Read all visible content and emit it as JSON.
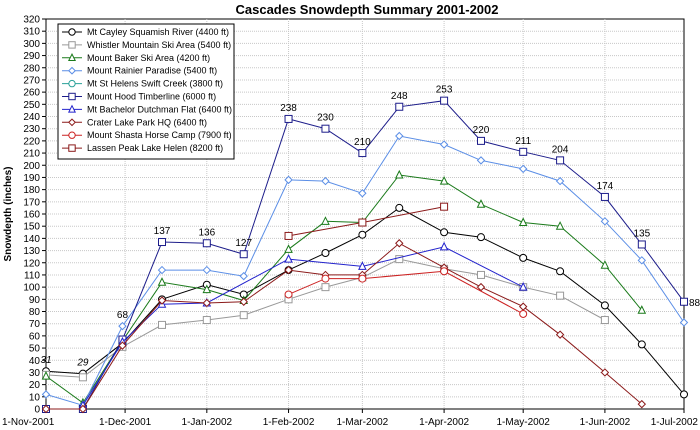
{
  "chart_data": {
    "type": "line",
    "title": "Cascades Snowdepth Summary 2001-2002",
    "xlabel": "",
    "ylabel": "Snowdepth (inches)",
    "ylim": [
      0,
      320
    ],
    "ytick_step": 10,
    "grid": true,
    "legend_position": "top-left",
    "xlim": [
      "2001-11-01",
      "2002-07-01"
    ],
    "x_ticks": [
      {
        "date": "2001-11-01",
        "label": "1-Nov-2001"
      },
      {
        "date": "2001-12-01",
        "label": "1-Dec-2001"
      },
      {
        "date": "2002-01-01",
        "label": "1-Jan-2002"
      },
      {
        "date": "2002-02-01",
        "label": "1-Feb-2002"
      },
      {
        "date": "2002-03-01",
        "label": "1-Mar-2002"
      },
      {
        "date": "2002-04-01",
        "label": "1-Apr-2002"
      },
      {
        "date": "2002-05-01",
        "label": "1-May-2002"
      },
      {
        "date": "2002-06-01",
        "label": "1-Jun-2002"
      },
      {
        "date": "2002-07-01",
        "label": "1-Jul-2002"
      }
    ],
    "series": [
      {
        "name": "Mt Cayley Squamish River (4400 ft)",
        "color": "#000000",
        "marker": "circle",
        "points": [
          [
            "2001-11-01",
            31
          ],
          [
            "2001-11-15",
            29
          ],
          [
            "2001-11-30",
            54
          ],
          [
            "2001-12-15",
            90
          ],
          [
            "2002-01-01",
            102
          ],
          [
            "2002-01-15",
            94
          ],
          [
            "2002-02-01",
            114
          ],
          [
            "2002-02-15",
            128
          ],
          [
            "2002-03-01",
            143
          ],
          [
            "2002-03-15",
            165
          ],
          [
            "2002-04-01",
            145
          ],
          [
            "2002-04-15",
            141
          ],
          [
            "2002-05-01",
            124
          ],
          [
            "2002-05-15",
            113
          ],
          [
            "2002-06-01",
            85
          ],
          [
            "2002-06-15",
            53
          ],
          [
            "2002-07-01",
            12
          ]
        ]
      },
      {
        "name": "Whistler Mountain Ski Area (5400 ft)",
        "color": "#999999",
        "marker": "square",
        "points": [
          [
            "2001-11-01",
            28
          ],
          [
            "2001-11-15",
            26
          ],
          [
            "2001-11-30",
            51
          ],
          [
            "2001-12-15",
            69
          ],
          [
            "2002-01-01",
            73
          ],
          [
            "2002-01-15",
            77
          ],
          [
            "2002-02-01",
            90
          ],
          [
            "2002-02-15",
            100
          ],
          [
            "2002-03-01",
            108
          ],
          [
            "2002-03-15",
            123
          ],
          [
            "2002-04-01",
            115
          ],
          [
            "2002-04-15",
            110
          ],
          [
            "2002-05-01",
            100
          ],
          [
            "2002-05-15",
            93
          ],
          [
            "2002-06-01",
            73
          ]
        ]
      },
      {
        "name": "Mount Baker Ski Area (4200 ft)",
        "color": "#1a7a1a",
        "marker": "triangle",
        "points": [
          [
            "2001-11-01",
            27
          ],
          [
            "2001-11-15",
            5
          ],
          [
            "2001-11-30",
            56
          ],
          [
            "2001-12-15",
            104
          ],
          [
            "2002-01-01",
            98
          ],
          [
            "2002-01-15",
            89
          ],
          [
            "2002-02-01",
            131
          ],
          [
            "2002-02-15",
            154
          ],
          [
            "2002-03-01",
            153
          ],
          [
            "2002-03-15",
            192
          ],
          [
            "2002-04-01",
            187
          ],
          [
            "2002-04-15",
            168
          ],
          [
            "2002-05-01",
            153
          ],
          [
            "2002-05-15",
            150
          ],
          [
            "2002-06-01",
            118
          ],
          [
            "2002-06-15",
            81
          ]
        ]
      },
      {
        "name": "Mount Rainier Paradise (5400 ft)",
        "color": "#5b8ee6",
        "marker": "diamond",
        "points": [
          [
            "2001-11-01",
            12
          ],
          [
            "2001-11-15",
            3
          ],
          [
            "2001-11-30",
            68
          ],
          [
            "2001-12-15",
            114
          ],
          [
            "2002-01-01",
            114
          ],
          [
            "2002-01-15",
            109
          ],
          [
            "2002-02-01",
            188
          ],
          [
            "2002-02-15",
            187
          ],
          [
            "2002-03-01",
            177
          ],
          [
            "2002-03-15",
            224
          ],
          [
            "2002-04-01",
            217
          ],
          [
            "2002-04-15",
            204
          ],
          [
            "2002-05-01",
            197
          ],
          [
            "2002-05-15",
            187
          ],
          [
            "2002-06-01",
            154
          ],
          [
            "2002-06-15",
            122
          ],
          [
            "2002-07-01",
            71
          ]
        ]
      },
      {
        "name": "Mt St Helens Swift Creek (3800 ft)",
        "color": "#2aa198",
        "marker": "circle",
        "points": []
      },
      {
        "name": "Mount Hood Timberline (6000 ft)",
        "color": "#1c1c8a",
        "marker": "square",
        "points": [
          [
            "2001-11-01",
            0
          ],
          [
            "2001-11-15",
            0
          ],
          [
            "2001-11-30",
            57
          ],
          [
            "2001-12-15",
            137
          ],
          [
            "2002-01-01",
            136
          ],
          [
            "2002-01-15",
            127
          ],
          [
            "2002-02-01",
            238
          ],
          [
            "2002-02-15",
            230
          ],
          [
            "2002-03-01",
            210
          ],
          [
            "2002-03-15",
            248
          ],
          [
            "2002-04-01",
            253
          ],
          [
            "2002-04-15",
            220
          ],
          [
            "2002-05-01",
            211
          ],
          [
            "2002-05-15",
            204
          ],
          [
            "2002-06-01",
            174
          ],
          [
            "2002-06-15",
            135
          ],
          [
            "2002-07-01",
            88
          ]
        ]
      },
      {
        "name": "Mt Bachelor Dutchman Flat (6400 ft)",
        "color": "#2222cc",
        "marker": "triangle",
        "points": [
          [
            "2001-11-15",
            3
          ],
          [
            "2001-11-30",
            55
          ],
          [
            "2001-12-15",
            86
          ],
          [
            "2002-01-01",
            87
          ],
          [
            "2002-02-01",
            123
          ],
          [
            "2002-03-01",
            117
          ],
          [
            "2002-04-01",
            133
          ],
          [
            "2002-05-01",
            100
          ]
        ]
      },
      {
        "name": "Crater Lake Park HQ (6400 ft)",
        "color": "#8b1a1a",
        "marker": "diamond",
        "points": [
          [
            "2001-11-01",
            0
          ],
          [
            "2001-11-15",
            0
          ],
          [
            "2001-11-30",
            52
          ],
          [
            "2001-12-15",
            89
          ],
          [
            "2002-01-01",
            87
          ],
          [
            "2002-01-15",
            88
          ],
          [
            "2002-02-01",
            114
          ],
          [
            "2002-02-15",
            110
          ],
          [
            "2002-03-01",
            110
          ],
          [
            "2002-03-15",
            136
          ],
          [
            "2002-04-01",
            116
          ],
          [
            "2002-04-15",
            100
          ],
          [
            "2002-05-01",
            84
          ],
          [
            "2002-05-15",
            61
          ],
          [
            "2002-06-01",
            30
          ],
          [
            "2002-06-15",
            4
          ]
        ]
      },
      {
        "name": "Mount Shasta Horse Camp (7900 ft)",
        "color": "#cc2222",
        "marker": "circle",
        "points": [
          [
            "2002-02-01",
            94
          ],
          [
            "2002-02-15",
            107
          ],
          [
            "2002-03-01",
            107
          ],
          [
            "2002-04-01",
            113
          ],
          [
            "2002-05-01",
            78
          ]
        ]
      },
      {
        "name": "Lassen Peak Lake Helen (8200 ft)",
        "color": "#8b1a1a",
        "marker": "square",
        "points": [
          [
            "2002-02-01",
            142
          ],
          [
            "2002-03-01",
            153
          ],
          [
            "2002-04-01",
            166
          ]
        ]
      }
    ],
    "annotations": [
      {
        "text": "31",
        "x": "2001-11-01",
        "y": 31,
        "italic": true
      },
      {
        "text": "29",
        "x": "2001-11-15",
        "y": 29,
        "italic": true
      },
      {
        "text": "68",
        "x": "2001-11-30",
        "y": 68
      },
      {
        "text": "137",
        "x": "2001-12-15",
        "y": 137
      },
      {
        "text": "136",
        "x": "2002-01-01",
        "y": 136
      },
      {
        "text": "127",
        "x": "2002-01-15",
        "y": 127
      },
      {
        "text": "238",
        "x": "2002-02-01",
        "y": 238
      },
      {
        "text": "230",
        "x": "2002-02-15",
        "y": 230
      },
      {
        "text": "210",
        "x": "2002-03-01",
        "y": 210
      },
      {
        "text": "248",
        "x": "2002-03-15",
        "y": 248
      },
      {
        "text": "253",
        "x": "2002-04-01",
        "y": 253
      },
      {
        "text": "220",
        "x": "2002-04-15",
        "y": 220
      },
      {
        "text": "211",
        "x": "2002-05-01",
        "y": 211
      },
      {
        "text": "204",
        "x": "2002-05-15",
        "y": 204
      },
      {
        "text": "174",
        "x": "2002-06-01",
        "y": 174
      },
      {
        "text": "135",
        "x": "2002-06-15",
        "y": 135
      },
      {
        "text": "88",
        "x": "2002-07-01",
        "y": 88
      }
    ]
  }
}
